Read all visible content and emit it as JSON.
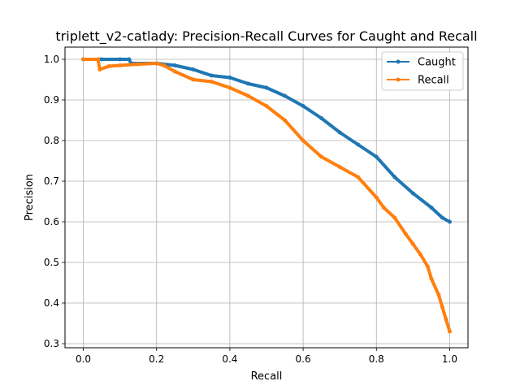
{
  "chart_data": {
    "type": "line",
    "title": "triplett_v2-catlady: Precision-Recall Curves for Caught and Recall",
    "xlabel": "Recall",
    "ylabel": "Precision",
    "xlim": [
      -0.05,
      1.05
    ],
    "ylim": [
      0.29,
      1.03
    ],
    "xticks": [
      0.0,
      0.2,
      0.4,
      0.6,
      0.8,
      1.0
    ],
    "xtick_labels": [
      "0.0",
      "0.2",
      "0.4",
      "0.6",
      "0.8",
      "1.0"
    ],
    "yticks": [
      0.3,
      0.4,
      0.5,
      0.6,
      0.7,
      0.8,
      0.9,
      1.0
    ],
    "ytick_labels": [
      "0.3",
      "0.4",
      "0.5",
      "0.6",
      "0.7",
      "0.8",
      "0.9",
      "1.0"
    ],
    "grid": true,
    "legend_position": "top-right",
    "series": [
      {
        "name": "Caught",
        "color": "#1f77b4",
        "x": [
          0.0,
          0.05,
          0.1,
          0.125,
          0.13,
          0.2,
          0.25,
          0.3,
          0.35,
          0.4,
          0.45,
          0.5,
          0.55,
          0.6,
          0.65,
          0.7,
          0.75,
          0.8,
          0.85,
          0.9,
          0.95,
          0.98,
          1.0
        ],
        "y": [
          1.0,
          1.0,
          1.0,
          1.0,
          0.99,
          0.99,
          0.985,
          0.975,
          0.96,
          0.955,
          0.94,
          0.93,
          0.91,
          0.885,
          0.855,
          0.82,
          0.79,
          0.76,
          0.71,
          0.67,
          0.635,
          0.61,
          0.6
        ]
      },
      {
        "name": "Recall",
        "color": "#ff7f0e",
        "x": [
          0.0,
          0.04,
          0.045,
          0.07,
          0.1,
          0.15,
          0.2,
          0.22,
          0.25,
          0.3,
          0.35,
          0.4,
          0.45,
          0.5,
          0.55,
          0.6,
          0.65,
          0.7,
          0.75,
          0.8,
          0.82,
          0.85,
          0.88,
          0.9,
          0.92,
          0.94,
          0.95,
          0.97,
          0.98,
          0.99,
          1.0
        ],
        "y": [
          1.0,
          1.0,
          0.975,
          0.983,
          0.985,
          0.988,
          0.99,
          0.985,
          0.97,
          0.95,
          0.945,
          0.93,
          0.91,
          0.885,
          0.85,
          0.8,
          0.76,
          0.735,
          0.71,
          0.66,
          0.635,
          0.61,
          0.57,
          0.545,
          0.52,
          0.49,
          0.46,
          0.42,
          0.39,
          0.36,
          0.33
        ]
      }
    ]
  }
}
